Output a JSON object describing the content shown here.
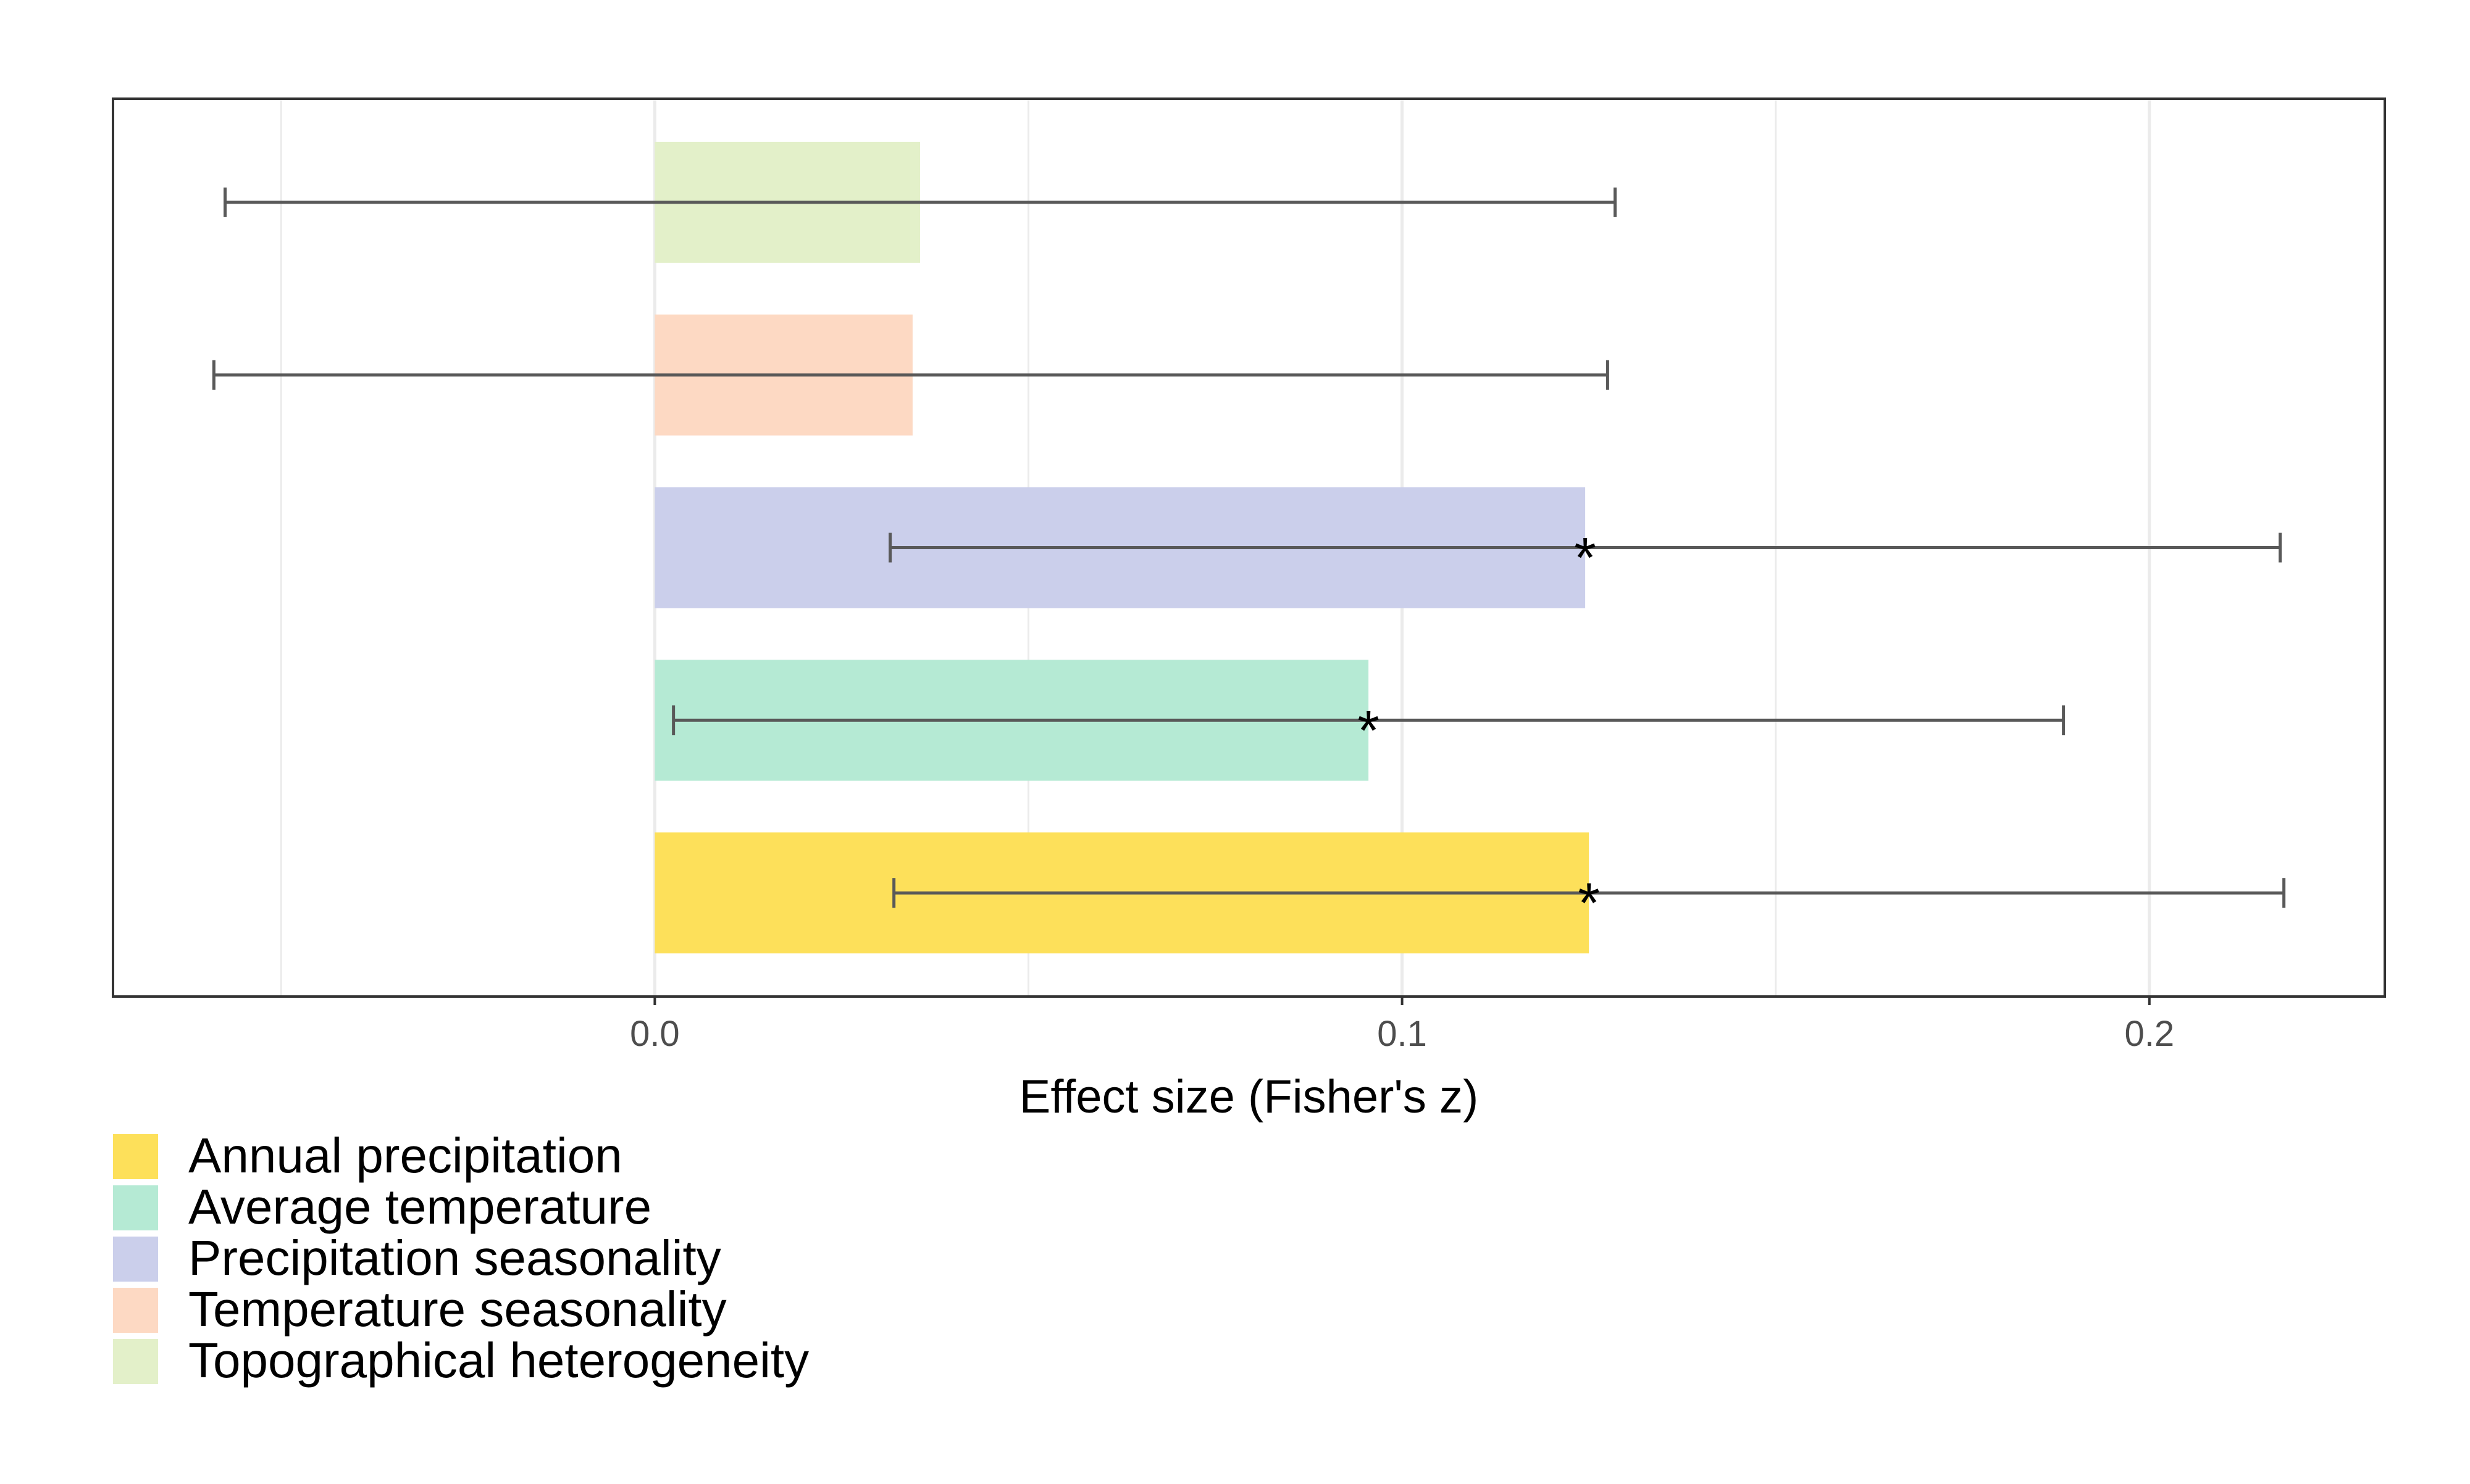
{
  "chart_data": {
    "type": "bar",
    "orientation": "horizontal",
    "xlabel": "Effect size (Fisher's z)",
    "ylabel": "",
    "xlim": [
      -0.0725,
      0.2315
    ],
    "x_ticks": [
      0.0,
      0.1,
      0.2
    ],
    "x_tick_labels": [
      "0.0",
      "0.1",
      "0.2"
    ],
    "minor_grid": [
      -0.05,
      0.05,
      0.15
    ],
    "grid": true,
    "legend_position": "bottom-left",
    "categories": [
      "Annual precipitation",
      "Average temperature",
      "Precipitation seasonality",
      "Temperature seasonality",
      "Topographical heterogeneity"
    ],
    "values": [
      0.125,
      0.0955,
      0.1245,
      0.0345,
      0.0355
    ],
    "ci_lower": [
      0.032,
      0.0025,
      0.0315,
      -0.059,
      -0.0575
    ],
    "ci_upper": [
      0.218,
      0.1885,
      0.2175,
      0.1275,
      0.1285
    ],
    "significant": [
      true,
      true,
      true,
      false,
      false
    ],
    "significance_marker": "*",
    "colors": [
      "#fde05a",
      "#b5ead4",
      "#cbcfeb",
      "#fdd9c3",
      "#e3f0c9"
    ]
  }
}
